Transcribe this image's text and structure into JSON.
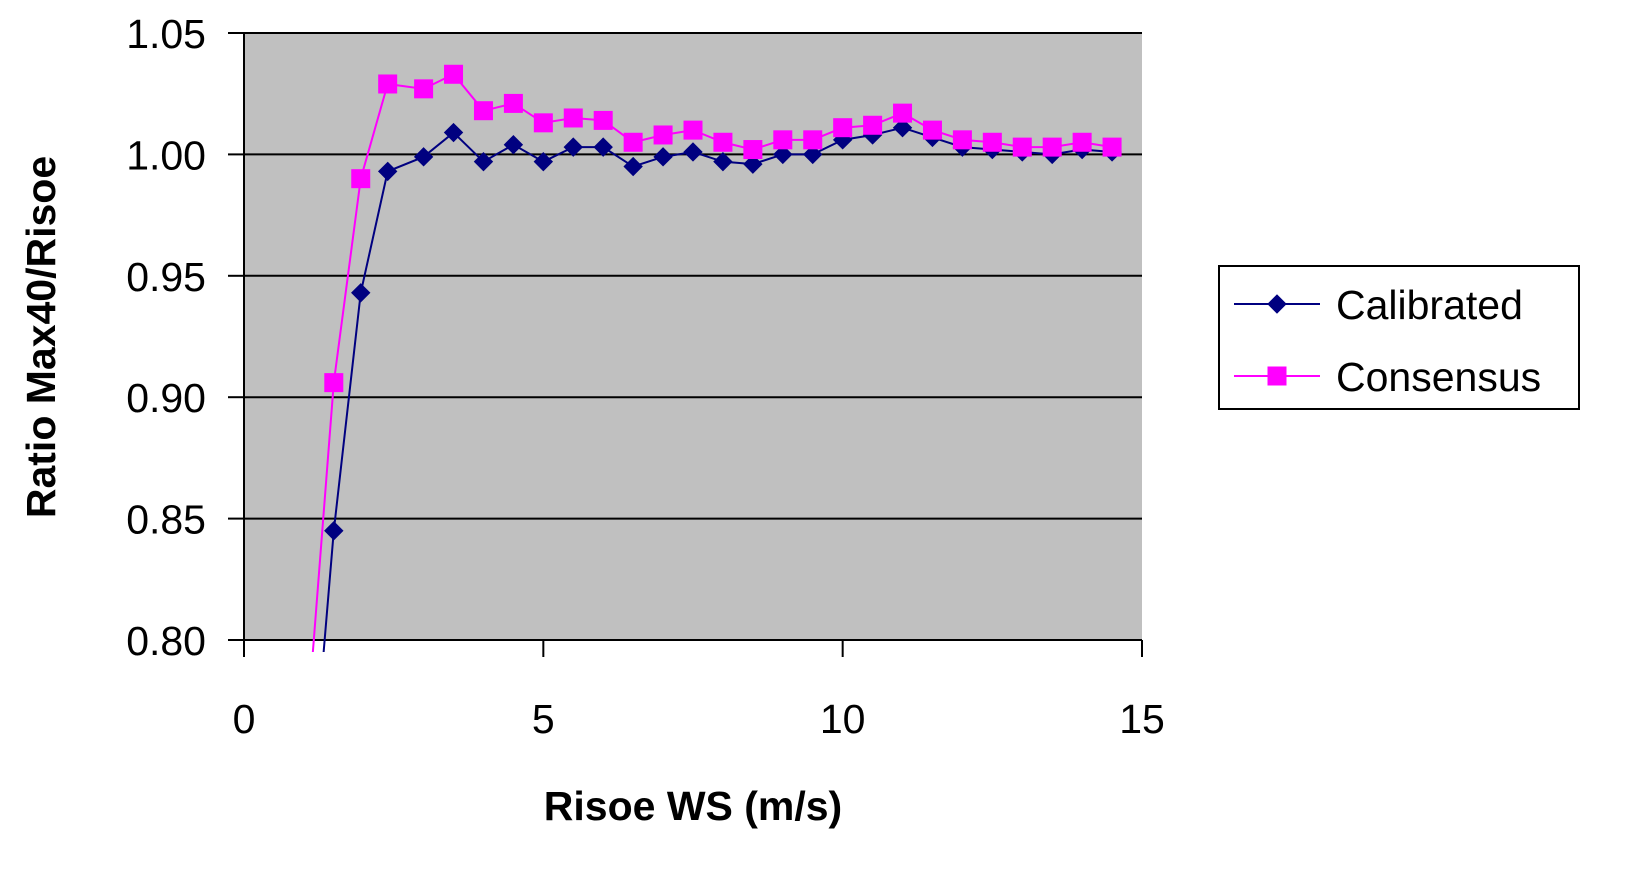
{
  "chart_data": {
    "type": "line",
    "title": "",
    "xlabel": "Risoe WS (m/s)",
    "ylabel": "Ratio Max40/Risoe",
    "xlim": [
      0,
      15
    ],
    "ylim": [
      0.8,
      1.05
    ],
    "x_ticks": [
      0,
      5,
      10,
      15
    ],
    "y_ticks": [
      0.8,
      0.85,
      0.9,
      0.95,
      1.0,
      1.05
    ],
    "x_tick_labels": [
      "0",
      "5",
      "10",
      "15"
    ],
    "y_tick_labels": [
      "0.80",
      "0.85",
      "0.90",
      "0.95",
      "1.00",
      "1.05"
    ],
    "grid": "horizontal",
    "plot_background": "#c0c0c0",
    "legend_position": "right",
    "series": [
      {
        "name": "Calibrated",
        "color": "#000080",
        "marker": "diamond",
        "x": [
          1.33,
          1.5,
          1.95,
          2.4,
          3.0,
          3.5,
          4.0,
          4.5,
          5.0,
          5.5,
          6.0,
          6.5,
          7.0,
          7.5,
          8.0,
          8.5,
          9.0,
          9.5,
          10.0,
          10.5,
          11.0,
          11.5,
          12.0,
          12.5,
          13.0,
          13.5,
          14.0,
          14.5
        ],
        "y": [
          0.795,
          0.845,
          0.943,
          0.993,
          0.999,
          1.009,
          0.997,
          1.004,
          0.997,
          1.003,
          1.003,
          0.995,
          0.999,
          1.001,
          0.997,
          0.996,
          1.0,
          1.0,
          1.006,
          1.008,
          1.011,
          1.007,
          1.003,
          1.002,
          1.001,
          1.0,
          1.002,
          1.001
        ],
        "marker_start_index": 1
      },
      {
        "name": "Consensus",
        "color": "#ff00ff",
        "marker": "square",
        "x": [
          1.15,
          1.5,
          1.95,
          2.4,
          3.0,
          3.5,
          4.0,
          4.5,
          5.0,
          5.5,
          6.0,
          6.5,
          7.0,
          7.5,
          8.0,
          8.5,
          9.0,
          9.5,
          10.0,
          10.5,
          11.0,
          11.5,
          12.0,
          12.5,
          13.0,
          13.5,
          14.0,
          14.5
        ],
        "y": [
          0.795,
          0.906,
          0.99,
          1.029,
          1.027,
          1.033,
          1.018,
          1.021,
          1.013,
          1.015,
          1.014,
          1.005,
          1.008,
          1.01,
          1.005,
          1.002,
          1.006,
          1.006,
          1.011,
          1.012,
          1.017,
          1.01,
          1.006,
          1.005,
          1.003,
          1.003,
          1.005,
          1.003
        ],
        "marker_start_index": 1
      }
    ]
  }
}
